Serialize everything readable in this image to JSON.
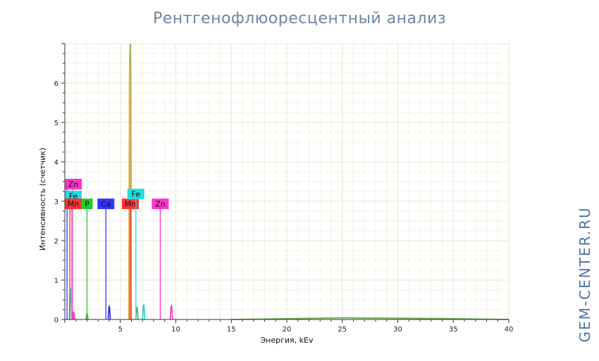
{
  "page": {
    "title": "Рентгенофлюоресцентный анализ",
    "watermark": "GEM-CENTER.RU"
  },
  "chart_data": {
    "type": "line",
    "title": "Рентгенофлюоресцентный анализ",
    "xlabel": "Энергия, kEv",
    "ylabel": "Интенсивность (счетчик)",
    "xlim": [
      0,
      40
    ],
    "ylim": [
      0,
      7
    ],
    "x_ticks": [
      5,
      10,
      15,
      20,
      25,
      30,
      35,
      40
    ],
    "y_ticks": [
      0,
      1,
      2,
      3,
      4,
      5,
      6
    ],
    "grid": true,
    "series": [
      {
        "color": "#6aa84f",
        "peaks": [
          {
            "x": 5.9,
            "y": 7.0
          },
          {
            "x": 6.5,
            "y": 0.3
          },
          {
            "x": 2.0,
            "y": 0.15
          },
          {
            "x": 0.7,
            "y": 0.2
          }
        ],
        "baseline": [
          {
            "x": 15,
            "y": 0.0
          },
          {
            "x": 20,
            "y": 0.02
          },
          {
            "x": 25,
            "y": 0.04
          },
          {
            "x": 30,
            "y": 0.03
          },
          {
            "x": 35,
            "y": 0.02
          },
          {
            "x": 40,
            "y": 0.0
          }
        ]
      },
      {
        "color": "#e8b04b",
        "peaks": [
          {
            "x": 5.85,
            "y": 6.9
          }
        ]
      },
      {
        "color": "#1fcfcf",
        "peaks": [
          {
            "x": 0.5,
            "y": 0.8
          },
          {
            "x": 7.1,
            "y": 0.38
          }
        ]
      },
      {
        "color": "#ff33cc",
        "peaks": [
          {
            "x": 0.8,
            "y": 0.18
          },
          {
            "x": 9.6,
            "y": 0.35
          }
        ]
      },
      {
        "color": "#2222cc",
        "peaks": [
          {
            "x": 4.0,
            "y": 0.33
          }
        ]
      }
    ],
    "element_markers": [
      {
        "symbol": "Ca",
        "energy": 0.2,
        "height": 3.3,
        "color": "#3333ff"
      },
      {
        "symbol": "Zn",
        "energy": 0.7,
        "height": 3.3,
        "color": "#ff33cc"
      },
      {
        "symbol": "Fe",
        "energy": 0.6,
        "height": 3.0,
        "color": "#22dddd"
      },
      {
        "symbol": "Mn",
        "energy": 0.45,
        "height": 2.8,
        "color": "#ff3333"
      },
      {
        "symbol": "P",
        "energy": 2.0,
        "height": 2.8,
        "color": "#22cc22"
      },
      {
        "symbol": "Ca",
        "energy": 3.7,
        "height": 2.8,
        "color": "#3333ff"
      },
      {
        "symbol": "Mn",
        "energy": 5.9,
        "height": 2.8,
        "color": "#ff3333"
      },
      {
        "symbol": "Fe",
        "energy": 6.4,
        "height": 3.05,
        "color": "#22dddd"
      },
      {
        "symbol": "Zn",
        "energy": 8.6,
        "height": 2.8,
        "color": "#ff33cc"
      }
    ]
  }
}
